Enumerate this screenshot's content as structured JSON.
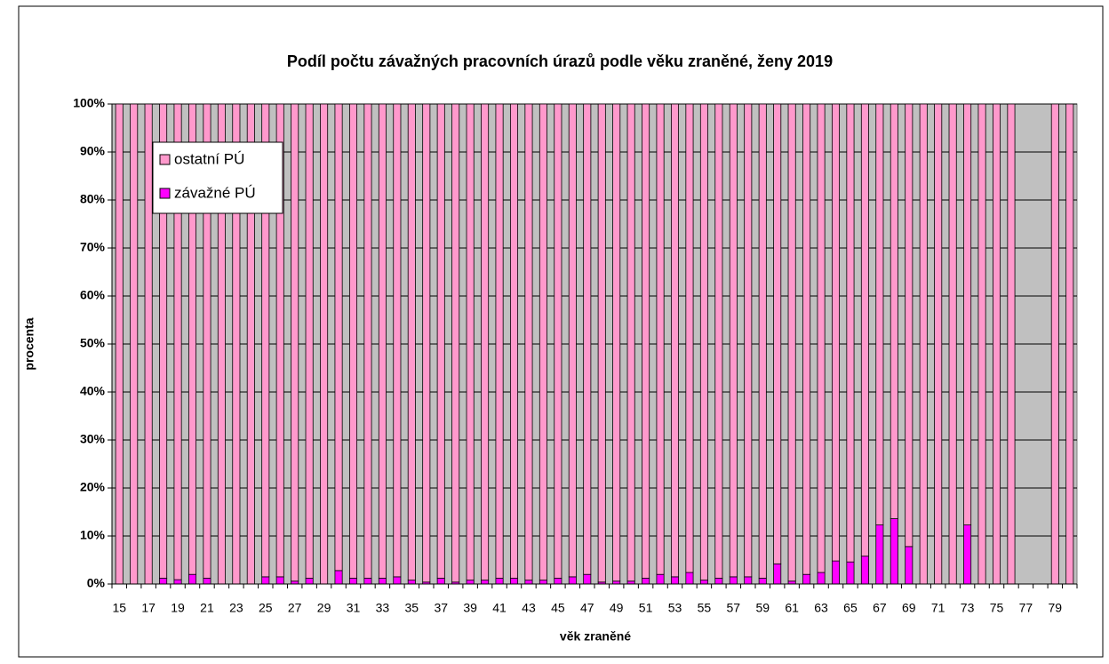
{
  "chart_data": {
    "type": "stacked_bar",
    "title": "Podíl počtu závažných pracovních úrazů podle věku zraněné, ženy 2019",
    "xlabel": "věk zraněné",
    "ylabel": "procenta",
    "categories": [
      "15",
      null,
      "17",
      null,
      "19",
      null,
      "21",
      null,
      "23",
      null,
      "25",
      null,
      "27",
      null,
      "29",
      null,
      "31",
      null,
      "33",
      null,
      "35",
      null,
      "37",
      null,
      "39",
      null,
      "41",
      null,
      "43",
      null,
      "45",
      null,
      "47",
      null,
      "49",
      null,
      "51",
      null,
      "53",
      null,
      "55",
      null,
      "57",
      null,
      "59",
      null,
      "61",
      null,
      "63",
      null,
      "65",
      null,
      "67",
      null,
      "69",
      null,
      "71",
      null,
      "73",
      null,
      "75",
      null,
      "77",
      null,
      "79",
      null
    ],
    "series": [
      {
        "name": "závažné PÚ",
        "color": "#ff00ff",
        "values": [
          0,
          0,
          0,
          1.2,
          0.9,
          2,
          1.2,
          0,
          0,
          0,
          1.5,
          1.5,
          0.6,
          1.2,
          0,
          2.8,
          1.2,
          1.2,
          1.2,
          1.5,
          0.8,
          0.4,
          1.2,
          0.4,
          0.8,
          0.8,
          1.2,
          1.2,
          0.8,
          0.8,
          1.2,
          1.5,
          2,
          0.4,
          0.6,
          0.6,
          1.2,
          2,
          1.5,
          2.4,
          0.8,
          1.2,
          1.5,
          1.5,
          1.2,
          4.2,
          0.6,
          2,
          2.4,
          4.8,
          4.6,
          5.8,
          12.3,
          13.6,
          7.8,
          0,
          0,
          0,
          12.3,
          0,
          0,
          0,
          null,
          null,
          0,
          0
        ]
      },
      {
        "name": "ostatní PÚ",
        "color": "#ff99cc",
        "values": [
          100,
          100,
          100,
          98.8,
          99.1,
          98,
          98.8,
          100,
          100,
          100,
          98.5,
          98.5,
          99.4,
          98.8,
          100,
          97.2,
          98.8,
          98.8,
          98.8,
          98.5,
          99.2,
          99.6,
          98.8,
          99.6,
          99.2,
          99.2,
          98.8,
          98.8,
          99.2,
          99.2,
          98.8,
          98.5,
          98,
          99.6,
          99.4,
          99.4,
          98.8,
          98,
          98.5,
          97.6,
          99.2,
          98.8,
          98.5,
          98.5,
          98.8,
          95.8,
          99.4,
          98,
          97.6,
          95.2,
          95.4,
          94.2,
          87.7,
          86.4,
          92.2,
          100,
          100,
          100,
          87.7,
          100,
          100,
          100,
          null,
          null,
          100,
          100
        ]
      }
    ],
    "ylim": [
      0,
      100
    ],
    "yticks": [
      {
        "value": 0,
        "label": "0%"
      },
      {
        "value": 10,
        "label": "10%"
      },
      {
        "value": 20,
        "label": "20%"
      },
      {
        "value": 30,
        "label": "30%"
      },
      {
        "value": 40,
        "label": "40%"
      },
      {
        "value": 50,
        "label": "50%"
      },
      {
        "value": 60,
        "label": "60%"
      },
      {
        "value": 70,
        "label": "70%"
      },
      {
        "value": 80,
        "label": "80%"
      },
      {
        "value": 90,
        "label": "90%"
      },
      {
        "value": 100,
        "label": "100%"
      }
    ],
    "grid": true,
    "legend": "upper left"
  }
}
